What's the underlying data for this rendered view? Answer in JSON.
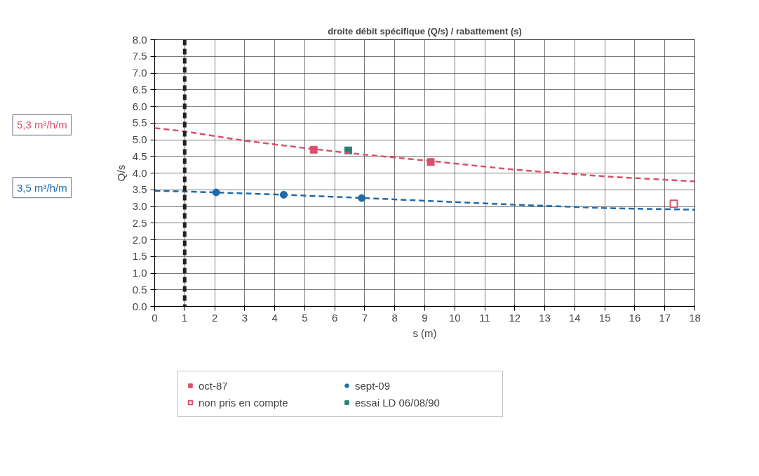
{
  "chart_data": {
    "type": "scatter",
    "title": "droite débit spécifique (Q/s) / rabattement (s)",
    "xlabel": "s (m)",
    "ylabel": "Q/s",
    "series": [
      {
        "name": "oct-87",
        "color": "#d9506e",
        "marker": "square",
        "x": [
          5.3,
          9.2
        ],
        "values": [
          4.7,
          4.33
        ]
      },
      {
        "name": "sept-09",
        "color": "#1f6aa8",
        "marker": "circle",
        "x": [
          2.05,
          4.3,
          6.9
        ],
        "values": [
          3.42,
          3.35,
          3.25
        ]
      },
      {
        "name": "non pris en compte",
        "color": "#d9506e",
        "marker": "square_open",
        "x": [
          17.3
        ],
        "values": [
          3.08
        ]
      },
      {
        "name": "essai LD 06/08/90",
        "color": "#2a7f74",
        "marker": "square",
        "x": [
          6.45
        ],
        "values": [
          4.68
        ]
      },
      {
        "type": "line",
        "color": "#d9506e",
        "line_style": "dashed",
        "x": [
          0,
          1,
          3,
          5,
          7,
          9,
          12,
          15,
          18
        ],
        "values": [
          5.35,
          5.25,
          4.97,
          4.75,
          4.55,
          4.38,
          4.1,
          3.9,
          3.75
        ]
      },
      {
        "type": "line",
        "color": "#1f6aa8",
        "line_style": "dashed",
        "x": [
          0,
          2,
          4.3,
          7,
          12,
          15,
          18
        ],
        "values": [
          3.47,
          3.42,
          3.35,
          3.25,
          3.05,
          2.95,
          2.9
        ]
      }
    ],
    "xlim": [
      0,
      18
    ],
    "xticks": [
      0,
      1,
      2,
      3,
      4,
      5,
      6,
      7,
      8,
      9,
      10,
      11,
      12,
      13,
      14,
      15,
      16,
      17,
      18
    ],
    "ylim": [
      0,
      8
    ],
    "yticks": [
      {
        "value": 0,
        "label": "0.0"
      },
      {
        "value": 0.5,
        "label": "0.5"
      },
      {
        "value": 1,
        "label": "1.0"
      },
      {
        "value": 1.5,
        "label": "1.5"
      },
      {
        "value": 2,
        "label": "2.0"
      },
      {
        "value": 2.5,
        "label": "2.5"
      },
      {
        "value": 3,
        "label": "3.0"
      },
      {
        "value": 3.5,
        "label": "3.5"
      },
      {
        "value": 4,
        "label": "4.0"
      },
      {
        "value": 4.5,
        "label": "4.5"
      },
      {
        "value": 5,
        "label": "5.0"
      },
      {
        "value": 5.5,
        "label": "5.5"
      },
      {
        "value": 6,
        "label": "6.0"
      },
      {
        "value": 6.5,
        "label": "6.5"
      },
      {
        "value": 7,
        "label": "7.0"
      },
      {
        "value": 7.5,
        "label": "7.5"
      },
      {
        "value": 8,
        "label": "8.0"
      }
    ],
    "ref_lines": [
      {
        "axis": "x",
        "value": 1,
        "color": "#222222",
        "line_style": "dashed"
      }
    ],
    "annotations": [
      "5,3 m³/h/m",
      "3,5 m³/h/m"
    ],
    "grid": true,
    "legend": "bottom"
  }
}
